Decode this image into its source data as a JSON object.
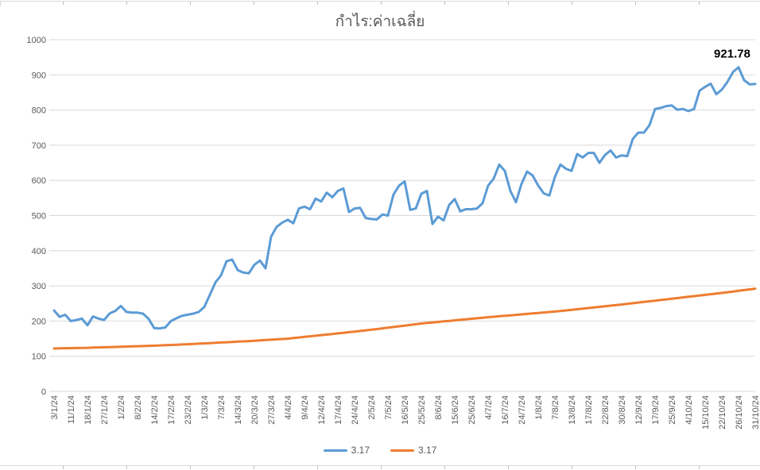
{
  "chart_data": {
    "type": "line",
    "title": "กำไร:ค่าเฉลี่ย",
    "xlabel": "",
    "ylabel": "",
    "ylim": [
      0,
      1000
    ],
    "y_ticks": [
      0,
      100,
      200,
      300,
      400,
      500,
      600,
      700,
      800,
      900,
      1000
    ],
    "grid": "horizontal",
    "legend_position": "bottom",
    "x_labels": [
      "3/1/24",
      "11/1/24",
      "18/1/24",
      "27/1/24",
      "1/2/24",
      "8/2/24",
      "14/2/24",
      "17/2/24",
      "23/2/24",
      "1/3/24",
      "7/3/24",
      "14/3/24",
      "20/3/24",
      "27/3/24",
      "4/4/24",
      "9/4/24",
      "12/4/24",
      "17/4/24",
      "24/4/24",
      "2/5/24",
      "7/5/24",
      "16/5/24",
      "25/5/24",
      "8/6/24",
      "15/6/24",
      "25/6/24",
      "4/7/24",
      "16/7/24",
      "24/7/24",
      "1/8/24",
      "7/8/24",
      "13/8/24",
      "17/8/24",
      "22/8/24",
      "30/8/24",
      "12/9/24",
      "17/9/24",
      "25/9/24",
      "4/10/24",
      "15/10/24",
      "22/10/24",
      "26/10/24",
      "31/10/24"
    ],
    "label_every_n_points": 3,
    "series": [
      {
        "name": "3.17",
        "color": "#5B9BD5",
        "values": [
          230,
          212,
          218,
          200,
          203,
          207,
          188,
          213,
          207,
          203,
          222,
          229,
          243,
          226,
          224,
          224,
          221,
          206,
          180,
          179,
          182,
          200,
          208,
          215,
          218,
          221,
          226,
          240,
          275,
          310,
          330,
          370,
          375,
          345,
          338,
          336,
          360,
          372,
          350,
          440,
          468,
          480,
          488,
          478,
          520,
          525,
          518,
          548,
          540,
          565,
          552,
          570,
          577,
          510,
          520,
          522,
          493,
          490,
          489,
          503,
          500,
          560,
          585,
          597,
          516,
          520,
          562,
          570,
          476,
          497,
          486,
          530,
          547,
          512,
          518,
          518,
          520,
          535,
          585,
          605,
          645,
          627,
          570,
          538,
          590,
          625,
          614,
          585,
          563,
          557,
          610,
          645,
          633,
          627,
          675,
          665,
          678,
          678,
          650,
          672,
          685,
          665,
          671,
          669,
          718,
          736,
          736,
          757,
          803,
          806,
          811,
          813,
          801,
          803,
          797,
          803,
          855,
          866,
          875,
          845,
          858,
          880,
          908,
          921.78,
          885,
          873,
          874
        ]
      },
      {
        "name": "3.17",
        "color": "#ED7D31",
        "values": [
          122,
          122.3,
          122.7,
          123,
          123.3,
          123.7,
          124,
          124.5,
          125,
          125.5,
          126,
          126.5,
          127,
          127.5,
          128,
          128.5,
          129,
          129.5,
          130,
          130.7,
          131.3,
          132,
          132.7,
          133.3,
          134,
          134.8,
          135.7,
          136.5,
          137.3,
          138.2,
          139,
          139.8,
          140.7,
          141.5,
          142.3,
          143.2,
          144,
          145,
          146,
          147,
          148,
          149,
          150,
          151.7,
          153.3,
          155,
          156.7,
          158.3,
          160,
          161.7,
          163.3,
          165,
          166.7,
          168.3,
          170,
          171.8,
          173.7,
          175.5,
          177.3,
          179.2,
          181,
          183,
          185,
          187,
          189,
          191,
          193,
          194.5,
          196,
          197.5,
          199,
          200.5,
          202,
          203.5,
          205,
          206.5,
          208,
          209.5,
          211,
          212.3,
          213.7,
          215,
          216.3,
          217.7,
          219,
          220.3,
          221.7,
          223,
          224.3,
          225.7,
          227,
          228.7,
          230.3,
          232,
          233.7,
          235.3,
          237,
          238.7,
          240.3,
          242,
          243.7,
          245.3,
          247,
          248.8,
          250.7,
          252.5,
          254.3,
          256.2,
          258,
          259.8,
          261.7,
          263.5,
          265.3,
          267.2,
          269,
          270.8,
          272.7,
          274.5,
          276.3,
          278.2,
          280,
          282,
          284,
          286,
          288,
          290,
          292
        ]
      }
    ],
    "annotation": {
      "text": "921.78",
      "series": 0,
      "point_index": 123
    },
    "colors": {
      "grid": "#D9D9D9",
      "tick_text": "#595959",
      "title_text": "#595959",
      "annotation_text": "#000000"
    }
  }
}
